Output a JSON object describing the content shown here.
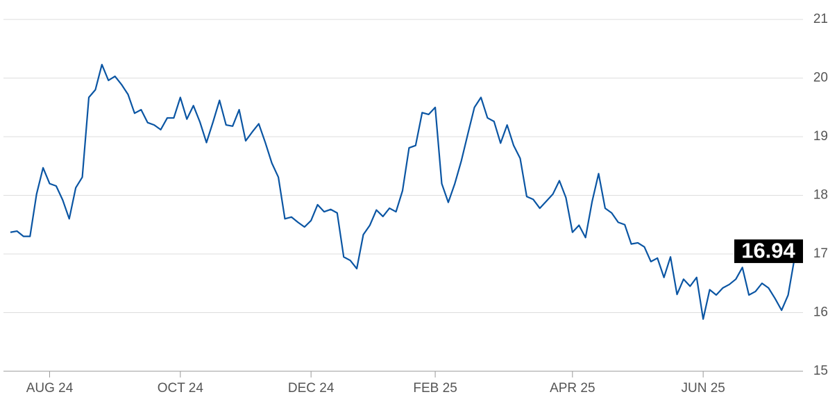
{
  "chart_data": {
    "type": "line",
    "categories": [
      null,
      null,
      null,
      null,
      null,
      null,
      "AUG 24",
      null,
      null,
      null,
      null,
      null,
      null,
      null,
      null,
      null,
      null,
      null,
      null,
      null,
      null,
      null,
      null,
      null,
      null,
      null,
      "OCT 24",
      null,
      null,
      null,
      null,
      null,
      null,
      null,
      null,
      null,
      null,
      null,
      null,
      null,
      null,
      null,
      null,
      null,
      null,
      null,
      "DEC 24",
      null,
      null,
      null,
      null,
      null,
      null,
      null,
      null,
      null,
      null,
      null,
      null,
      null,
      null,
      null,
      null,
      null,
      null,
      "FEB 25",
      null,
      null,
      null,
      null,
      null,
      null,
      null,
      null,
      null,
      null,
      null,
      null,
      null,
      null,
      null,
      null,
      null,
      null,
      null,
      null,
      "APR 25",
      null,
      null,
      null,
      null,
      null,
      null,
      null,
      null,
      null,
      null,
      null,
      null,
      null,
      null,
      null,
      null,
      null,
      null,
      null,
      "JUN 25",
      null,
      null,
      null,
      null,
      null,
      null,
      null,
      null,
      null,
      null,
      null,
      null,
      null,
      null
    ],
    "series": [
      {
        "color": "#0a55a3",
        "values": [
          17.37,
          17.39,
          17.3,
          17.3,
          18.02,
          18.47,
          18.2,
          18.16,
          17.92,
          17.6,
          18.13,
          18.31,
          19.67,
          19.8,
          20.23,
          19.96,
          20.03,
          19.89,
          19.72,
          19.4,
          19.46,
          19.24,
          19.2,
          19.12,
          19.32,
          19.32,
          19.67,
          19.3,
          19.53,
          19.25,
          18.9,
          19.25,
          19.62,
          19.2,
          19.18,
          19.46,
          18.93,
          19.08,
          19.22,
          18.9,
          18.55,
          18.31,
          17.6,
          17.63,
          17.54,
          17.46,
          17.57,
          17.84,
          17.72,
          17.76,
          17.7,
          16.95,
          16.89,
          16.75,
          17.33,
          17.49,
          17.75,
          17.64,
          17.78,
          17.72,
          18.08,
          18.81,
          18.85,
          19.41,
          19.38,
          19.5,
          18.2,
          17.88,
          18.2,
          18.59,
          19.05,
          19.5,
          19.67,
          19.32,
          19.26,
          18.89,
          19.2,
          18.85,
          18.63,
          17.98,
          17.93,
          17.78,
          17.9,
          18.02,
          18.25,
          17.96,
          17.37,
          17.49,
          17.28,
          17.89,
          18.37,
          17.78,
          17.7,
          17.54,
          17.5,
          17.17,
          17.19,
          17.12,
          16.87,
          16.93,
          16.6,
          16.95,
          16.31,
          16.57,
          16.45,
          16.6,
          15.89,
          16.39,
          16.3,
          16.42,
          16.48,
          16.57,
          16.77,
          16.3,
          16.36,
          16.5,
          16.42,
          16.24,
          16.04,
          16.3,
          16.94
        ]
      }
    ],
    "ylim": [
      15,
      21
    ],
    "yticks": [
      15,
      16,
      17,
      18,
      19,
      20,
      21
    ],
    "grid": true
  }
}
